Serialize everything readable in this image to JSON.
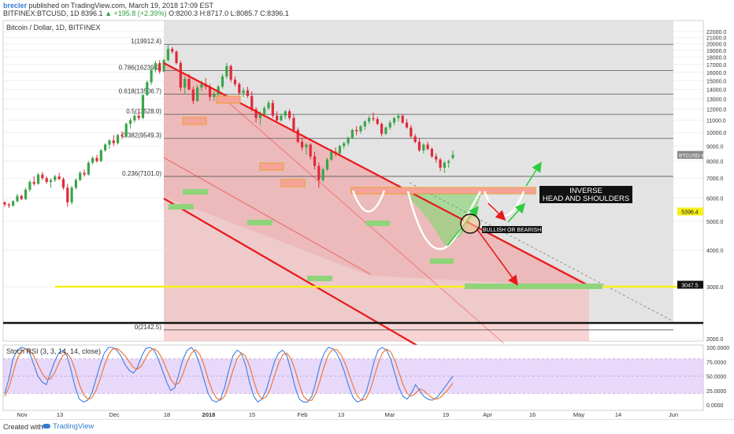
{
  "header": {
    "author": "brecler",
    "published": "published on TradingView.com, March 19, 2018 17:09 EST",
    "ticker": "BITFINEX:BTCUSD, 1D",
    "last": "8396.1",
    "change": "+195.8 (+2.39%)",
    "ohlc": "O:8200.3 H:8717.0 L:8085.7 C:8396.1"
  },
  "pane_title": "Bitcoin / Dollar, 1D, BITFINEX",
  "rsi_title": "Stoch RSI (3, 3, 14, 14, close)",
  "footer": {
    "created": "Created with",
    "brand": "TradingView"
  },
  "colors": {
    "candle_up": "#3aa54a",
    "candle_down": "#e0293a",
    "channel": "#e8191a",
    "support_yellow": "#f5ef1c",
    "rsi_k": "#3d7ee2",
    "rsi_d": "#f06f2a",
    "rsi_band": "#d6b8f5",
    "shaded_range": "#d9d9d9",
    "zone_red": "#f4bdbd",
    "zone_green": "#8fd47a"
  },
  "chart_data": [
    {
      "type": "candlestick",
      "title": "Bitcoin / Dollar, 1D, BITFINEX",
      "ylim": [
        1800,
        22700
      ],
      "y_scale": "log",
      "y_ticks": [
        2000,
        3000,
        4000,
        5000,
        6000,
        7000,
        8000,
        9000,
        10000,
        11000,
        12000,
        13000,
        14000,
        15000,
        16000,
        17000,
        18000,
        19000,
        20000,
        21000,
        22000
      ],
      "x_ticks": [
        "Nov",
        "13",
        "Dec",
        "18",
        "2018",
        "15",
        "Feb",
        "13",
        "Mar",
        "19",
        "Apr",
        "16",
        "May",
        "14",
        "Jun"
      ],
      "last_price_label": {
        "symbol": "BTCUSD",
        "value": "8396.1"
      },
      "price_labels": [
        {
          "value": "5396.4",
          "level": 5396.4
        },
        {
          "value": "3047.5",
          "level": 3047.5
        }
      ],
      "fib_levels": [
        {
          "label": "1(19912.4)",
          "level": 19912.4
        },
        {
          "label": "0.786(16239.9)",
          "level": 16239.9
        },
        {
          "label": "0.618(13506.7)",
          "level": 13506.7
        },
        {
          "label": "0.5(11528.0)",
          "level": 11528.0
        },
        {
          "label": "0.382(9549.3)",
          "level": 9549.3
        },
        {
          "label": "0.236(7101.0)",
          "level": 7101.0
        },
        {
          "label": "0(2142.5)",
          "level": 2142.5
        }
      ],
      "annotations": [
        {
          "text": "INVERSE",
          "note": "pattern label"
        },
        {
          "text": "HEAD AND SHOULDERS",
          "note": "pattern label"
        },
        {
          "text": "BULLISH OR BEARISH",
          "note": "decision point"
        }
      ],
      "ohlc": [
        [
          5800,
          5850,
          5600,
          5700
        ],
        [
          5700,
          5780,
          5550,
          5650
        ],
        [
          5650,
          5900,
          5600,
          5850
        ],
        [
          5850,
          6200,
          5800,
          6100
        ],
        [
          6100,
          6150,
          5900,
          5950
        ],
        [
          5950,
          6500,
          5900,
          6400
        ],
        [
          6400,
          6900,
          6300,
          6800
        ],
        [
          6800,
          7100,
          6600,
          6700
        ],
        [
          6700,
          7300,
          6650,
          7200
        ],
        [
          7200,
          7350,
          6900,
          7000
        ],
        [
          7000,
          7100,
          6700,
          6800
        ],
        [
          6800,
          7000,
          6500,
          6900
        ],
        [
          6900,
          7200,
          6800,
          7100
        ],
        [
          7100,
          7300,
          6900,
          6950
        ],
        [
          6950,
          7050,
          6400,
          6500
        ],
        [
          6500,
          6700,
          5600,
          5800
        ],
        [
          5800,
          6600,
          5700,
          6500
        ],
        [
          6500,
          7000,
          6400,
          6900
        ],
        [
          6900,
          7400,
          6850,
          7300
        ],
        [
          7300,
          7500,
          7100,
          7200
        ],
        [
          7200,
          8000,
          7150,
          7900
        ],
        [
          7900,
          8300,
          7800,
          8200
        ],
        [
          8200,
          8400,
          7900,
          8000
        ],
        [
          8000,
          8800,
          7950,
          8700
        ],
        [
          8700,
          9200,
          8600,
          9100
        ],
        [
          9100,
          9500,
          8800,
          9400
        ],
        [
          9400,
          9800,
          9000,
          9200
        ],
        [
          9200,
          9900,
          9100,
          9800
        ],
        [
          9800,
          10100,
          9500,
          9700
        ],
        [
          9700,
          10800,
          9600,
          10700
        ],
        [
          10700,
          11200,
          10300,
          11000
        ],
        [
          11000,
          11600,
          10800,
          11400
        ],
        [
          11400,
          11900,
          11000,
          11200
        ],
        [
          11200,
          13500,
          11100,
          13400
        ],
        [
          13400,
          15000,
          13300,
          14800
        ],
        [
          14800,
          16500,
          14500,
          16300
        ],
        [
          16300,
          17500,
          16000,
          17200
        ],
        [
          17200,
          17600,
          15800,
          16100
        ],
        [
          16100,
          17800,
          16000,
          17600
        ],
        [
          17600,
          19900,
          17400,
          19200
        ],
        [
          19200,
          19500,
          18500,
          18800
        ],
        [
          18800,
          19000,
          17000,
          17200
        ],
        [
          17200,
          17500,
          13800,
          14200
        ],
        [
          14200,
          15500,
          13500,
          15200
        ],
        [
          15200,
          15800,
          13900,
          14000
        ],
        [
          14000,
          14300,
          12500,
          12800
        ],
        [
          12800,
          14500,
          12700,
          14200
        ],
        [
          14200,
          15000,
          13800,
          14600
        ],
        [
          14600,
          15300,
          14000,
          14300
        ],
        [
          14300,
          14600,
          12800,
          13200
        ],
        [
          13200,
          13800,
          12800,
          13500
        ],
        [
          13500,
          14500,
          13300,
          14300
        ],
        [
          14300,
          15800,
          14100,
          15500
        ],
        [
          15500,
          17200,
          15200,
          16800
        ],
        [
          16800,
          17000,
          14800,
          15100
        ],
        [
          15100,
          15500,
          14300,
          14600
        ],
        [
          14600,
          14800,
          13400,
          13600
        ],
        [
          13600,
          14200,
          13200,
          13900
        ],
        [
          13900,
          14300,
          13100,
          13300
        ],
        [
          13300,
          13800,
          11800,
          12000
        ],
        [
          12000,
          12200,
          10800,
          11200
        ],
        [
          11200,
          11800,
          10600,
          11500
        ],
        [
          11500,
          12300,
          11300,
          12100
        ],
        [
          12100,
          12800,
          11900,
          12600
        ],
        [
          12600,
          12900,
          11200,
          11400
        ],
        [
          11400,
          11800,
          10800,
          11000
        ],
        [
          11000,
          11600,
          10900,
          11400
        ],
        [
          11400,
          11900,
          11100,
          11800
        ],
        [
          11800,
          12000,
          11000,
          11200
        ],
        [
          11200,
          11500,
          10000,
          10200
        ],
        [
          10200,
          10400,
          9200,
          9300
        ],
        [
          9300,
          9600,
          8700,
          8900
        ],
        [
          8900,
          9200,
          8400,
          9100
        ],
        [
          9100,
          9200,
          8100,
          8300
        ],
        [
          8300,
          8600,
          7500,
          7700
        ],
        [
          7700,
          7900,
          6500,
          6900
        ],
        [
          6900,
          7600,
          6800,
          7500
        ],
        [
          7500,
          8200,
          7400,
          8100
        ],
        [
          8100,
          8800,
          8000,
          8600
        ],
        [
          8600,
          8900,
          8300,
          8500
        ],
        [
          8500,
          9100,
          8400,
          9000
        ],
        [
          9000,
          9300,
          8800,
          9200
        ],
        [
          9200,
          9700,
          9000,
          9600
        ],
        [
          9600,
          10300,
          9500,
          10200
        ],
        [
          10200,
          10500,
          9800,
          10100
        ],
        [
          10100,
          10600,
          9900,
          10500
        ],
        [
          10500,
          11000,
          10200,
          10900
        ],
        [
          10900,
          11400,
          10700,
          11200
        ],
        [
          11200,
          11700,
          10900,
          11100
        ],
        [
          11100,
          11300,
          10600,
          10700
        ],
        [
          10700,
          10800,
          9700,
          9900
        ],
        [
          9900,
          10500,
          9800,
          10400
        ],
        [
          10400,
          11000,
          10200,
          10800
        ],
        [
          10800,
          11300,
          10600,
          11200
        ],
        [
          11200,
          11600,
          10900,
          11400
        ],
        [
          11400,
          11500,
          10700,
          10800
        ],
        [
          10800,
          11100,
          10300,
          10400
        ],
        [
          10400,
          10600,
          9600,
          9700
        ],
        [
          9700,
          9900,
          9200,
          9300
        ],
        [
          9300,
          9600,
          8600,
          8700
        ],
        [
          8700,
          9200,
          8500,
          9100
        ],
        [
          9100,
          9300,
          8700,
          8800
        ],
        [
          8800,
          8900,
          8200,
          8300
        ],
        [
          8300,
          8500,
          7900,
          8100
        ],
        [
          8100,
          8200,
          7400,
          7600
        ],
        [
          7600,
          8000,
          7300,
          7900
        ],
        [
          7900,
          8100,
          7600,
          8000
        ],
        [
          8200,
          8700,
          8100,
          8400
        ]
      ]
    },
    {
      "type": "line",
      "title": "Stoch RSI (3, 3, 14, 14, close)",
      "ylim": [
        -5,
        105
      ],
      "y_ticks": [
        "100.0000",
        "75.0000",
        "50.0000",
        "25.0000",
        "0.0000"
      ],
      "bands": [
        20,
        80
      ],
      "series": [
        {
          "name": "K",
          "values": [
            20,
            45,
            80,
            95,
            100,
            98,
            90,
            70,
            50,
            40,
            35,
            55,
            75,
            90,
            95,
            85,
            60,
            30,
            10,
            5,
            8,
            20,
            45,
            70,
            90,
            100,
            100,
            95,
            85,
            70,
            60,
            55,
            65,
            85,
            98,
            100,
            95,
            80,
            60,
            40,
            25,
            30,
            55,
            80,
            95,
            100,
            90,
            70,
            45,
            20,
            8,
            5,
            10,
            30,
            60,
            85,
            95,
            90,
            70,
            40,
            15,
            5,
            10,
            25,
            50,
            75,
            90,
            95,
            85,
            60,
            30,
            10,
            5,
            5,
            15,
            40,
            70,
            90,
            100,
            98,
            90,
            75,
            55,
            30,
            12,
            5,
            8,
            20,
            45,
            75,
            95,
            100,
            95,
            80,
            55,
            30,
            15,
            10,
            20,
            35,
            25,
            15,
            10,
            8,
            12,
            20,
            30,
            40,
            50
          ]
        },
        {
          "name": "D",
          "values": [
            15,
            30,
            55,
            80,
            92,
            97,
            95,
            85,
            70,
            55,
            45,
            45,
            55,
            72,
            86,
            90,
            80,
            60,
            35,
            18,
            10,
            12,
            25,
            45,
            68,
            87,
            97,
            98,
            93,
            85,
            75,
            65,
            62,
            68,
            82,
            94,
            98,
            92,
            80,
            62,
            45,
            35,
            38,
            55,
            75,
            90,
            96,
            88,
            70,
            45,
            25,
            12,
            8,
            15,
            35,
            60,
            80,
            90,
            85,
            68,
            42,
            20,
            10,
            14,
            28,
            50,
            72,
            87,
            90,
            80,
            60,
            35,
            15,
            8,
            8,
            20,
            42,
            67,
            87,
            96,
            96,
            88,
            73,
            53,
            32,
            15,
            8,
            10,
            24,
            47,
            72,
            90,
            97,
            92,
            78,
            57,
            35,
            20,
            15,
            20,
            28,
            25,
            18,
            12,
            10,
            13,
            20,
            28,
            38
          ]
        }
      ]
    }
  ]
}
